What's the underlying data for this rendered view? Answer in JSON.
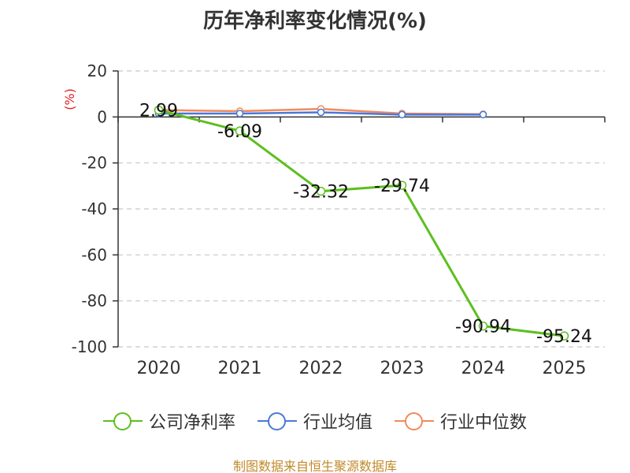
{
  "title": "历年净利率变化情况(%)",
  "footer": "制图数据来自恒生聚源数据库",
  "chart_data": {
    "type": "line",
    "title": "历年净利率变化情况(%)",
    "ylabel": "(%)",
    "xlabel": "",
    "categories": [
      "2020",
      "2021",
      "2022",
      "2023",
      "2024",
      "2025"
    ],
    "ylim": [
      -100,
      20
    ],
    "yticks": [
      20,
      0,
      -20,
      -40,
      -60,
      -80,
      -100
    ],
    "grid": true,
    "legend_position": "bottom",
    "series": [
      {
        "name": "公司净利率",
        "color": "#5cbf1f",
        "values": [
          2.99,
          -6.09,
          -32.32,
          -29.74,
          -90.94,
          -95.24
        ],
        "labels": [
          "2.99",
          "-6.09",
          "-32.32",
          "-29.74",
          "-90.94",
          "-95.24"
        ]
      },
      {
        "name": "行业均值",
        "color": "#4a78d8",
        "values": [
          1.5,
          1.5,
          2.0,
          1.0,
          1.0,
          null
        ]
      },
      {
        "name": "行业中位数",
        "color": "#f08a5d",
        "values": [
          3.0,
          2.5,
          3.5,
          1.5,
          1.2,
          null
        ]
      }
    ]
  }
}
